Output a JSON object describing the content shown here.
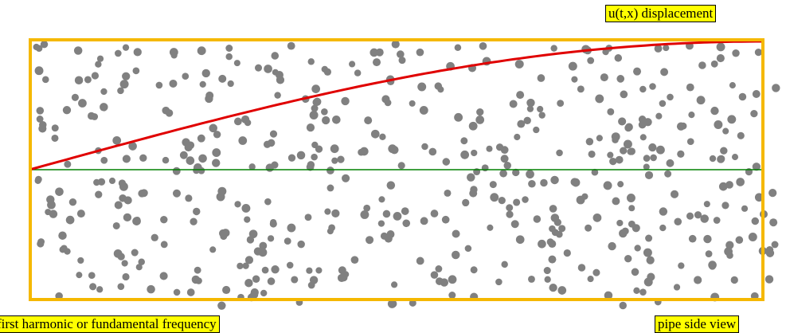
{
  "labels": {
    "displacement": "u(t,x) displacement",
    "mode": "first harmonic or fundamental frequency",
    "view": "pipe side view"
  }
}
